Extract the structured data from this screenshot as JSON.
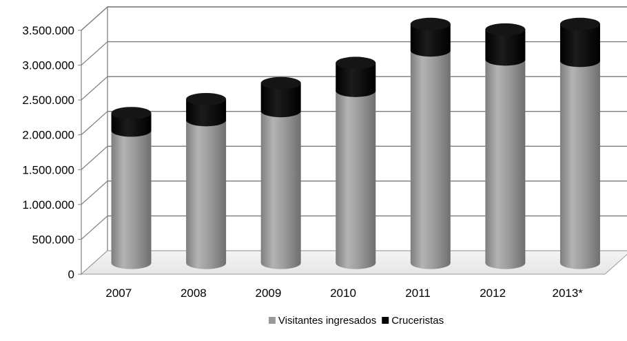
{
  "chart_data": {
    "type": "bar",
    "stacked": true,
    "three_d": true,
    "title": "",
    "xlabel": "",
    "ylabel": "",
    "categories": [
      "2007",
      "2008",
      "2009",
      "2010",
      "2011",
      "2012",
      "2013*"
    ],
    "y_ticks": [
      "0",
      "500.000",
      "1.000.000",
      "1.500.000",
      "2.000.000",
      "2.500.000",
      "3.000.000",
      "3.500.000"
    ],
    "ylim": [
      0,
      3500000
    ],
    "grid": true,
    "legend_position": "bottom-center",
    "series": [
      {
        "name": "Visitantes ingresados",
        "color": "#999999",
        "values": [
          1900000,
          2050000,
          2180000,
          2470000,
          3050000,
          2920000,
          2900000
        ]
      },
      {
        "name": "Cruceristas",
        "color": "#000000",
        "values": [
          250000,
          300000,
          400000,
          400000,
          380000,
          430000,
          530000
        ]
      }
    ]
  }
}
